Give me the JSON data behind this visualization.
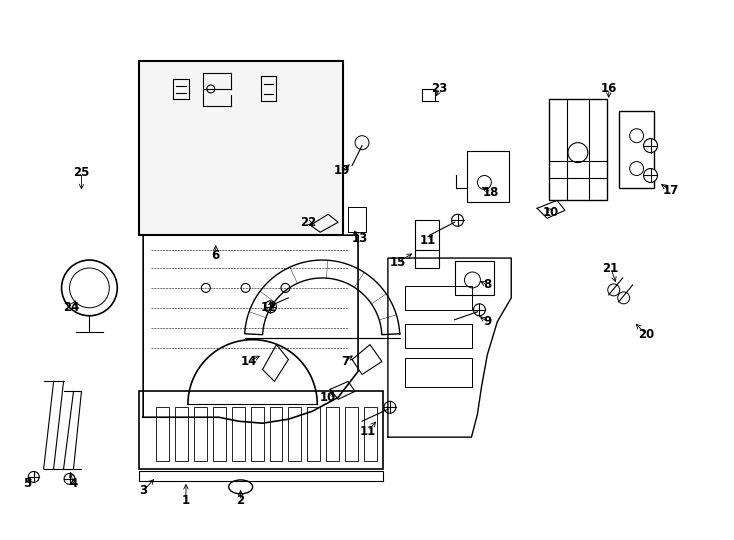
{
  "title": "",
  "bg_color": "#ffffff",
  "line_color": "#000000",
  "label_color": "#000000",
  "fig_width": 7.34,
  "fig_height": 5.4,
  "dpi": 100
}
